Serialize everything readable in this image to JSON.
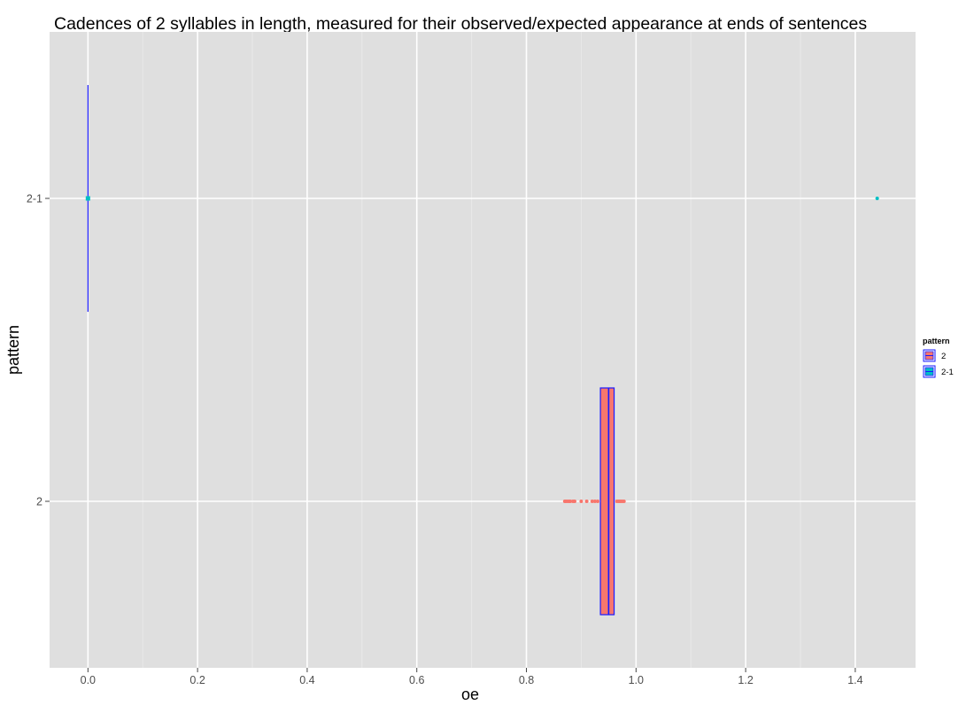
{
  "chart_data": {
    "type": "boxplot",
    "title": "Cadences of 2 syllables in length, measured for their observed/expected appearance at ends of sentences",
    "xlabel": "oe",
    "ylabel": "pattern",
    "xlim": [
      -0.07,
      1.51
    ],
    "x_ticks": [
      0.0,
      0.2,
      0.4,
      0.6,
      0.8,
      1.0,
      1.2,
      1.4
    ],
    "x_tick_labels": [
      "0.0",
      "0.2",
      "0.4",
      "0.6",
      "0.8",
      "1.0",
      "1.2",
      "1.4"
    ],
    "categories": [
      "2",
      "2-1"
    ],
    "grid": true,
    "background": "#dfdfdf",
    "legend": {
      "title": "pattern",
      "position": "right",
      "entries": [
        {
          "label": "2",
          "fill": "#f8766d"
        },
        {
          "label": "2-1",
          "fill": "#00bfc4"
        }
      ]
    },
    "series": [
      {
        "name": "2",
        "fill": "#f8766d",
        "outline": "#1a1aff",
        "q1": 0.935,
        "median": 0.95,
        "q3": 0.96,
        "whisker_low": 0.935,
        "whisker_high": 0.96,
        "outliers": [
          0.87,
          0.872,
          0.875,
          0.878,
          0.88,
          0.885,
          0.888,
          0.9,
          0.91,
          0.92,
          0.925,
          0.93,
          0.965,
          0.968,
          0.97,
          0.972,
          0.975,
          0.978
        ]
      },
      {
        "name": "2-1",
        "fill": "#00bfc4",
        "outline": "#1a1aff",
        "q1": 0.0,
        "median": 0.0,
        "q3": 0.0,
        "whisker_low": 0.0,
        "whisker_high": 0.0,
        "outliers": [
          1.44
        ]
      }
    ]
  }
}
